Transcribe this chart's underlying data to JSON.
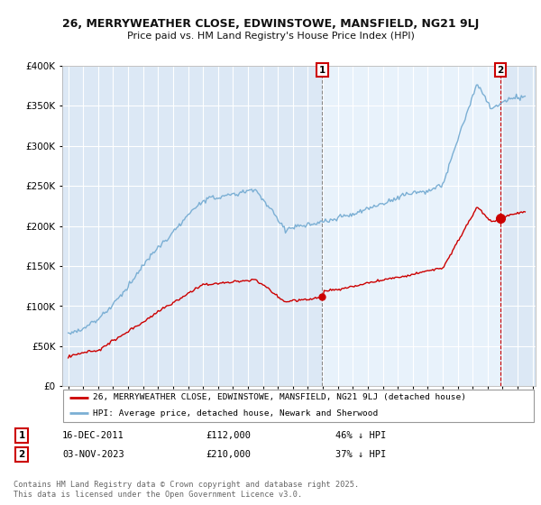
{
  "title_line1": "26, MERRYWEATHER CLOSE, EDWINSTOWE, MANSFIELD, NG21 9LJ",
  "title_line2": "Price paid vs. HM Land Registry's House Price Index (HPI)",
  "legend_label_red": "26, MERRYWEATHER CLOSE, EDWINSTOWE, MANSFIELD, NG21 9LJ (detached house)",
  "legend_label_blue": "HPI: Average price, detached house, Newark and Sherwood",
  "annotation1_date": "16-DEC-2011",
  "annotation1_price": "£112,000",
  "annotation1_hpi": "46% ↓ HPI",
  "annotation2_date": "03-NOV-2023",
  "annotation2_price": "£210,000",
  "annotation2_hpi": "37% ↓ HPI",
  "footer": "Contains HM Land Registry data © Crown copyright and database right 2025.\nThis data is licensed under the Open Government Licence v3.0.",
  "ylim": [
    0,
    400000
  ],
  "yticks": [
    0,
    50000,
    100000,
    150000,
    200000,
    250000,
    300000,
    350000,
    400000
  ],
  "color_red": "#cc0000",
  "color_blue": "#7bafd4",
  "color_vline1": "#888888",
  "color_vline2": "#cc0000",
  "bg_color": "#ffffff",
  "plot_bg_color": "#dce8f5",
  "grid_color": "#ffffff",
  "annotation_box_color": "#cc0000",
  "sale1_year": 2011.96,
  "sale2_year": 2023.84
}
